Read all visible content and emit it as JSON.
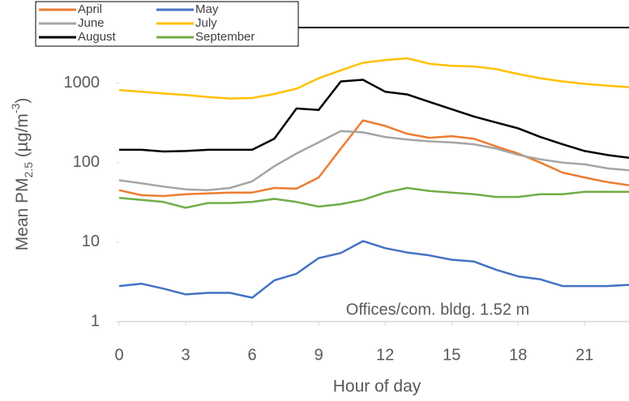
{
  "chart_data": {
    "type": "line",
    "xlabel": "Hour of day",
    "ylabel": [
      "Mean PM",
      "2.5",
      " (µg/m",
      "-3",
      ")"
    ],
    "annotation": "Offices/com. bldg. 1.52 m",
    "log_y": true,
    "legend": "upper left",
    "xlim": [
      0,
      23
    ],
    "ylim": [
      1,
      5000
    ],
    "xticks": [
      0,
      3,
      6,
      9,
      12,
      15,
      18,
      21
    ],
    "yticks": [
      1,
      10,
      100,
      1000
    ],
    "x": [
      0,
      1,
      2,
      3,
      4,
      5,
      6,
      7,
      8,
      9,
      10,
      11,
      12,
      13,
      14,
      15,
      16,
      17,
      18,
      19,
      20,
      21,
      22,
      23
    ],
    "series": [
      {
        "name": "April",
        "color": "#ed7d31",
        "values": [
          45,
          39,
          38,
          40,
          41,
          42,
          42,
          48,
          47,
          65,
          150,
          340,
          290,
          230,
          205,
          215,
          200,
          160,
          130,
          100,
          75,
          65,
          57,
          52
        ]
      },
      {
        "name": "May",
        "color": "#4472c4",
        "values": [
          2.8,
          3.0,
          2.6,
          2.2,
          2.3,
          2.3,
          2.0,
          3.3,
          4.0,
          6.3,
          7.3,
          10.3,
          8.4,
          7.4,
          6.8,
          6.0,
          5.7,
          4.5,
          3.7,
          3.4,
          2.8,
          2.8,
          2.8,
          2.9
        ]
      },
      {
        "name": "June",
        "color": "#a5a5a5",
        "values": [
          60,
          55,
          50,
          46,
          45,
          48,
          58,
          90,
          130,
          180,
          250,
          240,
          210,
          195,
          185,
          180,
          170,
          150,
          125,
          110,
          100,
          95,
          85,
          80
        ]
      },
      {
        "name": "July",
        "color": "#ffc000",
        "values": [
          820,
          780,
          740,
          710,
          670,
          640,
          650,
          730,
          850,
          1150,
          1450,
          1800,
          1950,
          2050,
          1750,
          1650,
          1620,
          1500,
          1300,
          1150,
          1050,
          980,
          930,
          890
        ]
      },
      {
        "name": "August",
        "color": "#000000",
        "values": [
          145,
          145,
          138,
          140,
          145,
          145,
          145,
          200,
          480,
          460,
          1050,
          1100,
          780,
          720,
          580,
          470,
          380,
          320,
          270,
          210,
          170,
          140,
          125,
          115
        ]
      },
      {
        "name": "September",
        "color": "#70ad47",
        "values": [
          36,
          34,
          32,
          27,
          31,
          31,
          32,
          35,
          32,
          28,
          30,
          34,
          42,
          48,
          44,
          42,
          40,
          37,
          37,
          40,
          40,
          43,
          43,
          43
        ]
      }
    ]
  }
}
